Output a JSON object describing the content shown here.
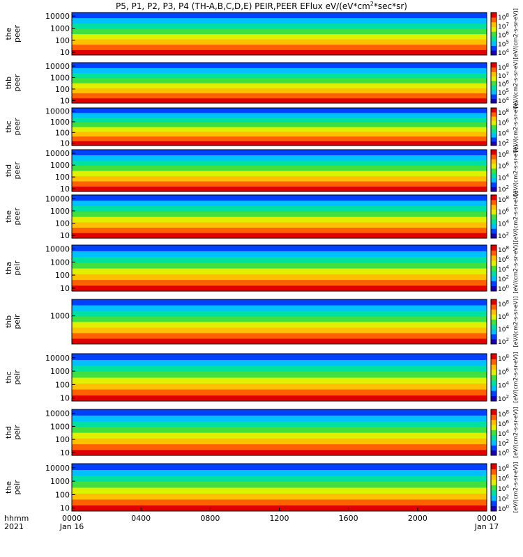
{
  "title": "P5, P1, P2, P3, P4 (TH-A,B,C,D,E) PEIR,PEER EFlux eV/(eV*cm",
  "title_sup": "2",
  "title_tail": "*sec*sr)",
  "chart_data": {
    "type": "heatmap",
    "x_axis": {
      "row_label_1": "hhmm",
      "row_label_2": "2021",
      "ticks": [
        "0000",
        "0400",
        "0800",
        "1200",
        "1600",
        "2000",
        "0000"
      ],
      "dates": [
        "Jan 16",
        "Jan 17"
      ],
      "range_hours": [
        0,
        24
      ]
    },
    "panels": [
      {
        "label": "the peer",
        "ylim": [
          6,
          20000
        ],
        "yscale": "log",
        "yticks": [
          "10000",
          "1000",
          "100",
          "10"
        ],
        "colorbar_ticks": [
          "10",
          "10",
          "10",
          "10",
          "10"
        ],
        "colorbar_exps": [
          "8",
          "7",
          "6",
          "5",
          "4"
        ],
        "colorbar_label": "[eV/(cm2-s-sr-eV)]"
      },
      {
        "label": "thb peer",
        "ylim": [
          6,
          20000
        ],
        "yscale": "log",
        "yticks": [
          "10000",
          "1000",
          "100",
          "10"
        ],
        "colorbar_ticks": [
          "10",
          "10",
          "10",
          "10",
          "10"
        ],
        "colorbar_exps": [
          "8",
          "7",
          "6",
          "5",
          "4"
        ],
        "colorbar_label": "[eV/(cm2-s-sr-eV)]"
      },
      {
        "label": "thc peer",
        "ylim": [
          6,
          20000
        ],
        "yscale": "log",
        "yticks": [
          "10000",
          "1000",
          "100",
          "10"
        ],
        "colorbar_ticks": [
          "10",
          "10",
          "10",
          "10"
        ],
        "colorbar_exps": [
          "8",
          "6",
          "4",
          "2"
        ],
        "colorbar_label": "[eV/(cm2-s-sr-eV)]"
      },
      {
        "label": "thd peer",
        "ylim": [
          6,
          20000
        ],
        "yscale": "log",
        "yticks": [
          "10000",
          "1000",
          "100",
          "10"
        ],
        "colorbar_ticks": [
          "10",
          "10",
          "10",
          "10"
        ],
        "colorbar_exps": [
          "8",
          "6",
          "4",
          "2"
        ],
        "colorbar_label": "[eV/(cm2-s-sr-eV)]"
      },
      {
        "label": "the peer",
        "ylim": [
          6,
          20000
        ],
        "yscale": "log",
        "yticks": [
          "10000",
          "1000",
          "100",
          "10"
        ],
        "colorbar_ticks": [
          "10",
          "10",
          "10",
          "10"
        ],
        "colorbar_exps": [
          "8",
          "6",
          "4",
          "2"
        ],
        "colorbar_label": "[eV/(cm2-s-sr-eV)]"
      },
      {
        "label": "tha peir",
        "ylim": [
          6,
          20000
        ],
        "yscale": "log",
        "yticks": [
          "10000",
          "1000",
          "100",
          "10"
        ],
        "colorbar_ticks": [
          "10",
          "10",
          "10",
          "10",
          "10"
        ],
        "colorbar_exps": [
          "8",
          "6",
          "4",
          "2",
          "0"
        ],
        "colorbar_label": "[eV/(cm2-s-sr-eV)]"
      },
      {
        "label": "thb peir",
        "ylim": [
          6,
          20000
        ],
        "yscale": "log",
        "yticks": [
          "1000"
        ],
        "colorbar_ticks": [
          "10",
          "10",
          "10",
          "10"
        ],
        "colorbar_exps": [
          "8",
          "6",
          "4",
          "2"
        ],
        "colorbar_label": "[eV/(cm2-s-sr-eV)]"
      },
      {
        "label": "thc peir",
        "ylim": [
          6,
          20000
        ],
        "yscale": "log",
        "yticks": [
          "10000",
          "1000",
          "100",
          "10"
        ],
        "colorbar_ticks": [
          "10",
          "10",
          "10",
          "10"
        ],
        "colorbar_exps": [
          "8",
          "6",
          "4",
          "2"
        ],
        "colorbar_label": "[eV/(cm2-s-sr-eV)]"
      },
      {
        "label": "thd peir",
        "ylim": [
          6,
          20000
        ],
        "yscale": "log",
        "yticks": [
          "10000",
          "1000",
          "100",
          "10"
        ],
        "colorbar_ticks": [
          "10",
          "10",
          "10",
          "10",
          "10"
        ],
        "colorbar_exps": [
          "8",
          "6",
          "4",
          "2",
          "0"
        ],
        "colorbar_label": "[eV/(cm2-s-sr-eV)]"
      },
      {
        "label": "the peir",
        "ylim": [
          6,
          20000
        ],
        "yscale": "log",
        "yticks": [
          "10000",
          "1000",
          "100",
          "10"
        ],
        "colorbar_ticks": [
          "10",
          "10",
          "10",
          "10",
          "10"
        ],
        "colorbar_exps": [
          "8",
          "6",
          "4",
          "2",
          "0"
        ],
        "colorbar_label": "[eV/(cm2-s-sr-eV)]"
      }
    ],
    "bar_colors": {
      "red": "#e00000",
      "yellow": "#ffff00",
      "black": "#000000"
    },
    "colormap": [
      "#1a00b0",
      "#0040ff",
      "#00c0ff",
      "#00e0a0",
      "#40e040",
      "#e0f000",
      "#ffc000",
      "#ff6000",
      "#e00000"
    ]
  }
}
